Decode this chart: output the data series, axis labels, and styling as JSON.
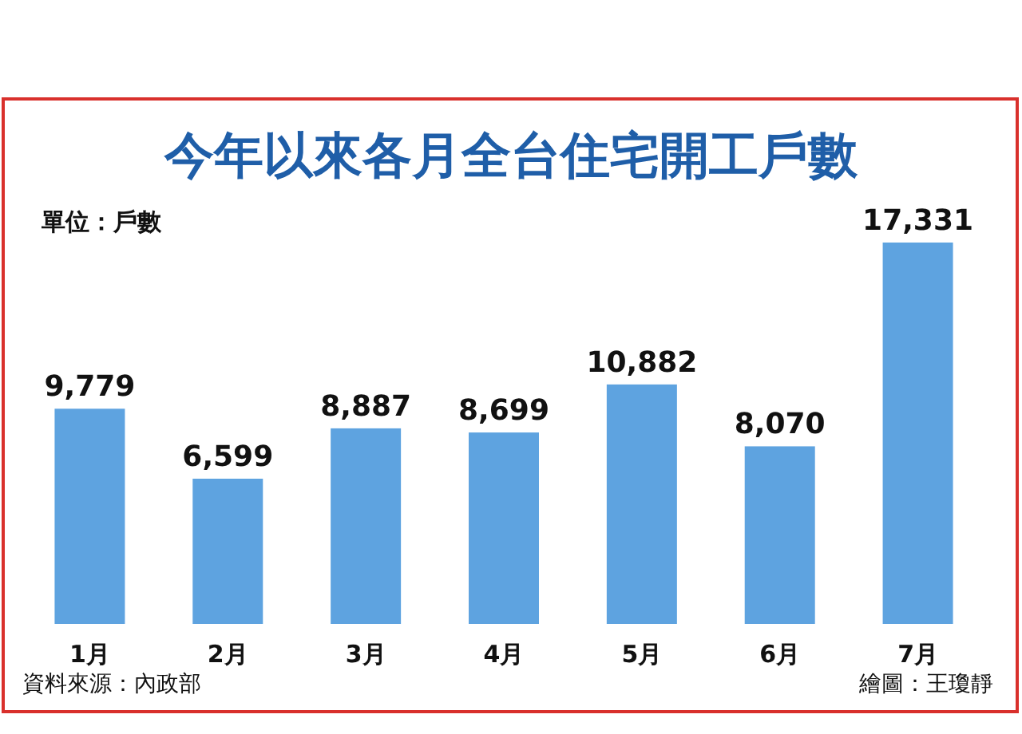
{
  "chart_data": {
    "type": "bar",
    "title": "今年以來各月全台住宅開工戶數",
    "ylabel": "單位：戶數",
    "categories": [
      "1月",
      "2月",
      "3月",
      "4月",
      "5月",
      "6月",
      "7月"
    ],
    "values": [
      9779,
      6599,
      8887,
      8699,
      10882,
      8070,
      17331
    ],
    "color": "#5ea3e0",
    "value_labels": [
      "9,779",
      "6,599",
      "8,887",
      "8,699",
      "10,882",
      "8,070",
      "17,331"
    ],
    "annotations": [
      "資料來源：內政部",
      "繪圖：王瓊靜"
    ]
  }
}
